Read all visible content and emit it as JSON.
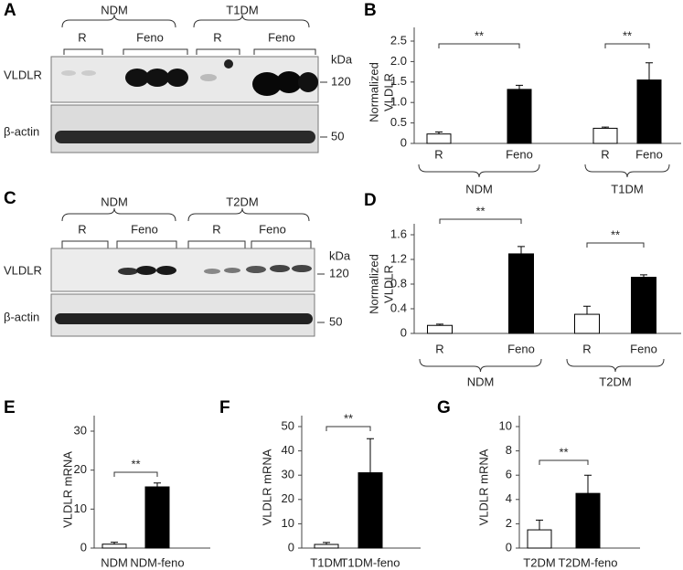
{
  "panels": [
    {
      "letter": "A",
      "groups": [
        "NDM",
        "T1DM"
      ],
      "subgroups": [
        "R",
        "Feno",
        "R",
        "Feno"
      ],
      "rows": [
        "VLDLR",
        "β-actin"
      ],
      "unit": "kDa",
      "markers": [
        "120",
        "50"
      ]
    },
    {
      "letter": "C",
      "groups": [
        "NDM",
        "T2DM"
      ],
      "subgroups": [
        "R",
        "Feno",
        "R",
        "Feno"
      ],
      "rows": [
        "VLDLR",
        "β-actin"
      ],
      "unit": "kDa",
      "markers": [
        "120",
        "50"
      ]
    }
  ],
  "chart_data": [
    {
      "type": "bar",
      "letter": "B",
      "ylabel": [
        "Normalized",
        "VLDLR"
      ],
      "categories": [
        "R",
        "Feno",
        "R",
        "Feno"
      ],
      "values": [
        0.23,
        1.32,
        0.37,
        1.55
      ],
      "errors": [
        0.05,
        0.1,
        0.03,
        0.42
      ],
      "colors": [
        "#ffffff",
        "#000000",
        "#ffffff",
        "#000000"
      ],
      "groups": [
        "NDM",
        "T1DM"
      ],
      "significance": [
        "**",
        "**"
      ],
      "ylim": [
        0,
        2.5
      ],
      "yticks": [
        0,
        0.5,
        {
          "value": 1,
          "label": "1.0"
        },
        1.5,
        {
          "value": 2,
          "label": "2.0"
        },
        2.5
      ]
    },
    {
      "type": "bar",
      "letter": "D",
      "ylabel": [
        "Normalized",
        "VLDLR"
      ],
      "categories": [
        "R",
        "Feno",
        "R",
        "Feno"
      ],
      "values": [
        0.13,
        1.29,
        0.31,
        0.91
      ],
      "errors": [
        0.02,
        0.12,
        0.13,
        0.04
      ],
      "colors": [
        "#ffffff",
        "#000000",
        "#ffffff",
        "#000000"
      ],
      "groups": [
        "NDM",
        "T2DM"
      ],
      "significance": [
        "**",
        "**"
      ],
      "ylim": [
        0,
        1.6
      ],
      "yticks": [
        0,
        0.4,
        0.8,
        1.2,
        1.6
      ]
    },
    {
      "type": "bar",
      "letter": "E",
      "ylabel": [
        "VLDLR mRNA"
      ],
      "categories": [
        "NDM",
        "NDM-feno"
      ],
      "values": [
        1,
        15.7
      ],
      "errors": [
        0.5,
        1
      ],
      "colors": [
        "#ffffff",
        "#000000"
      ],
      "significance": [
        "**"
      ],
      "ylim": [
        0,
        30
      ],
      "yticks": [
        0,
        10,
        20,
        30
      ]
    },
    {
      "type": "bar",
      "letter": "F",
      "ylabel": [
        "VLDLR mRNA"
      ],
      "categories": [
        "T1DM",
        "T1DM-feno"
      ],
      "values": [
        1.5,
        31
      ],
      "errors": [
        0.8,
        14
      ],
      "colors": [
        "#ffffff",
        "#000000"
      ],
      "significance": [
        "**"
      ],
      "ylim": [
        0,
        50
      ],
      "yticks": [
        0,
        10,
        20,
        30,
        40,
        50
      ]
    },
    {
      "type": "bar",
      "letter": "G",
      "ylabel": [
        "VLDLR mRNA"
      ],
      "categories": [
        "T2DM",
        "T2DM-feno"
      ],
      "values": [
        1.5,
        4.5
      ],
      "errors": [
        0.8,
        1.5
      ],
      "colors": [
        "#ffffff",
        "#000000"
      ],
      "significance": [
        "**"
      ],
      "ylim": [
        0,
        10
      ],
      "yticks": [
        0,
        2,
        4,
        6,
        8,
        10
      ]
    }
  ]
}
